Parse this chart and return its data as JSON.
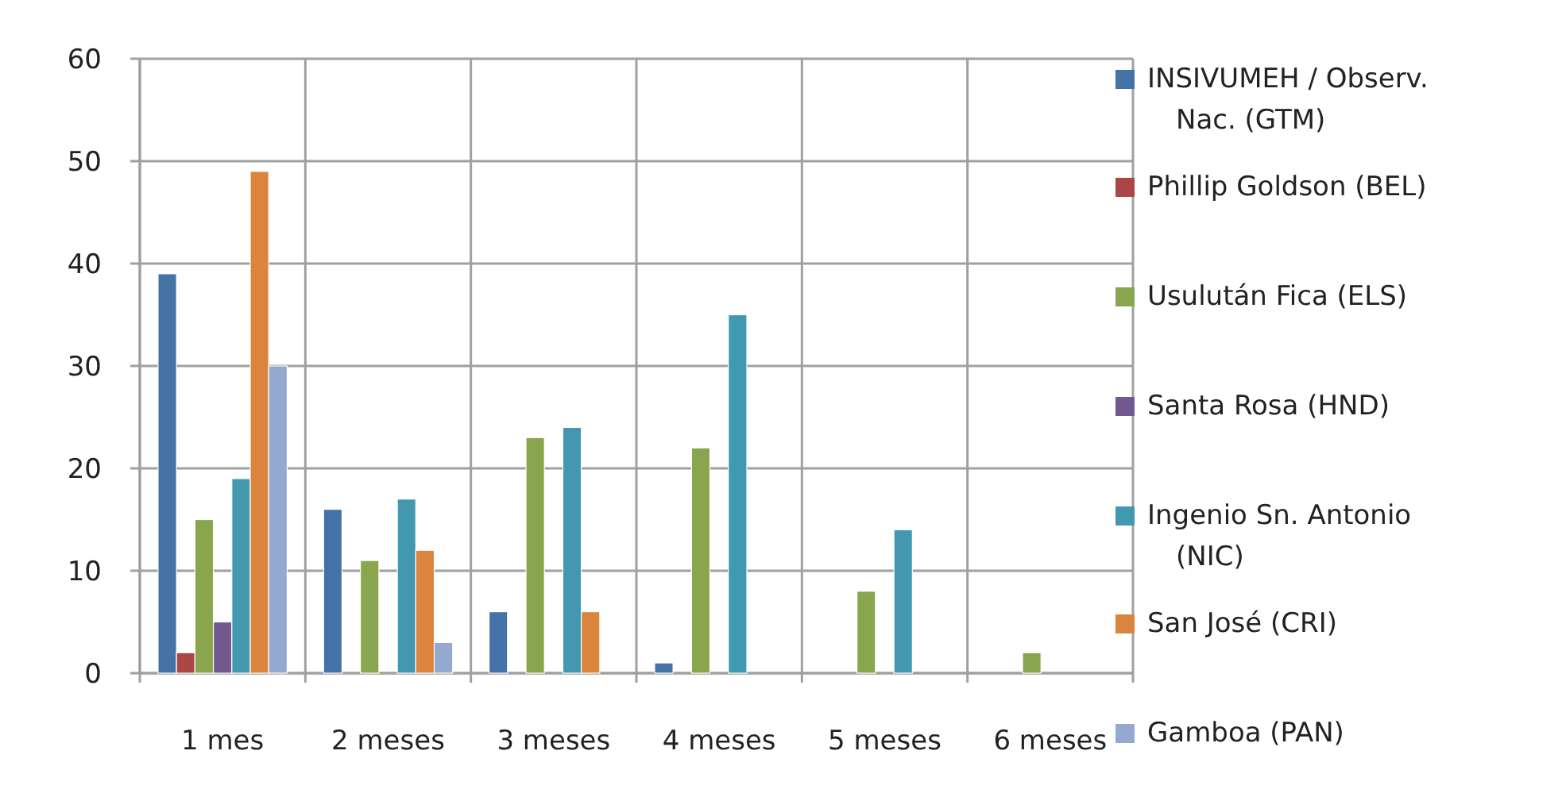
{
  "chart_data": {
    "type": "bar",
    "categories": [
      "1 mes",
      "2 meses",
      "3 meses",
      "4 meses",
      "5 meses",
      "6 meses"
    ],
    "series": [
      {
        "name": "INSIVUMEH / Observ. Nac. (GTM)",
        "color": "#4572a7",
        "values": [
          39,
          16,
          6,
          1,
          null,
          null
        ]
      },
      {
        "name": "Phillip Goldson (BEL)",
        "color": "#aa4643",
        "values": [
          2,
          null,
          null,
          null,
          null,
          null
        ]
      },
      {
        "name": "Usulután Fica (ELS)",
        "color": "#89a54e",
        "values": [
          15,
          11,
          23,
          22,
          8,
          2
        ]
      },
      {
        "name": "Santa Rosa (HND)",
        "color": "#71588f",
        "values": [
          5,
          null,
          null,
          null,
          null,
          null
        ]
      },
      {
        "name": "Ingenio Sn. Antonio (NIC)",
        "color": "#4198af",
        "values": [
          19,
          17,
          24,
          35,
          14,
          null
        ]
      },
      {
        "name": "San José (CRI)",
        "color": "#db843d",
        "values": [
          49,
          12,
          6,
          null,
          null,
          null
        ]
      },
      {
        "name": "Gamboa (PAN)",
        "color": "#93a9cf",
        "values": [
          30,
          3,
          null,
          null,
          null,
          null
        ]
      }
    ],
    "ylim": [
      0,
      60
    ],
    "yticks": [
      0,
      10,
      20,
      30,
      40,
      50,
      60
    ],
    "grid": true,
    "legend": "right"
  }
}
